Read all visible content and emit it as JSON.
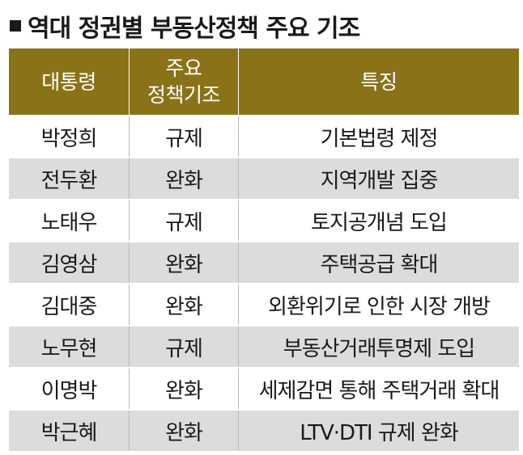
{
  "title": "역대 정권별 부동산정책 주요 기조",
  "headers": {
    "president": "대통령",
    "policy_stance": "주요\n정책기조",
    "feature": "특징"
  },
  "rows": [
    {
      "president": "박정희",
      "stance": "규제",
      "feature": "기본법령 제정"
    },
    {
      "president": "전두환",
      "stance": "완화",
      "feature": "지역개발 집중"
    },
    {
      "president": "노태우",
      "stance": "규제",
      "feature": "토지공개념 도입"
    },
    {
      "president": "김영삼",
      "stance": "완화",
      "feature": "주택공급 확대"
    },
    {
      "president": "김대중",
      "stance": "완화",
      "feature": "외환위기로 인한 시장 개방"
    },
    {
      "president": "노무현",
      "stance": "규제",
      "feature": "부동산거래투명제 도입"
    },
    {
      "president": "이명박",
      "stance": "완화",
      "feature": "세제감면 통해 주택거래 확대"
    },
    {
      "president": "박근혜",
      "stance": "완화",
      "feature": "LTV·DTI 규제 완화"
    }
  ],
  "colors": {
    "header_bg": "#8a7219",
    "header_text": "#ffffff",
    "row_alt_bg": "#dcdcdc"
  }
}
